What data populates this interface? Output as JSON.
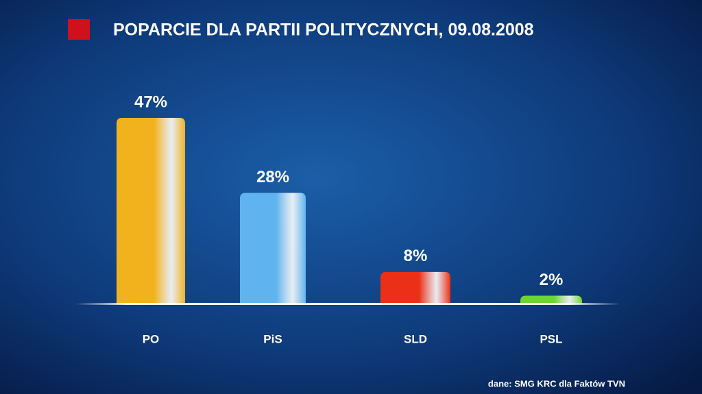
{
  "chart_data": {
    "type": "bar",
    "title": "POPARCIE DLA PARTII POLITYCZNYCH, 09.08.2008",
    "categories": [
      "PO",
      "PiS",
      "SLD",
      "PSL"
    ],
    "values": [
      47,
      28,
      8,
      2
    ],
    "value_labels": [
      "47%",
      "28%",
      "8%",
      "2%"
    ],
    "colors": [
      "#f2b21e",
      "#5fb3ee",
      "#ec2f17",
      "#6cd62c"
    ],
    "source": "dane: SMG KRC dla Faktów TVN"
  }
}
